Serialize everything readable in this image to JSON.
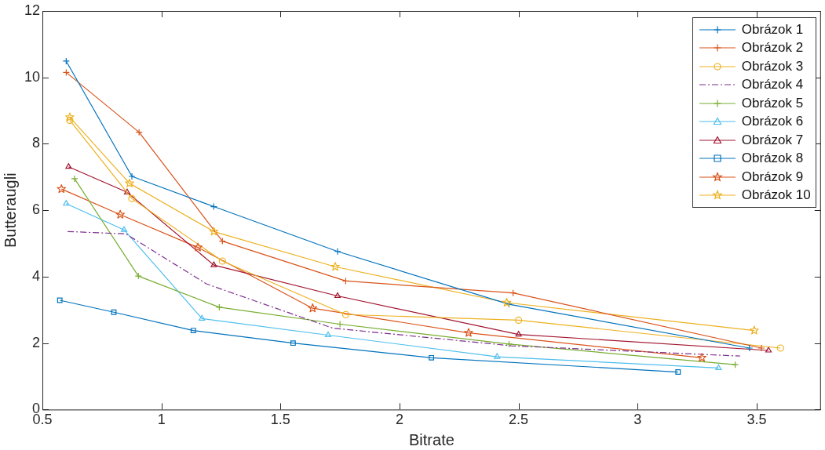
{
  "chart_data": {
    "type": "line",
    "xlabel": "Bitrate",
    "ylabel": "Butteraugli",
    "xlim": [
      0.5,
      3.77
    ],
    "xticks": [
      0.5,
      1,
      1.5,
      2,
      2.5,
      3,
      3.5
    ],
    "ylim": [
      0,
      12
    ],
    "yticks": [
      0,
      2,
      4,
      6,
      8,
      10,
      12
    ],
    "grid": false,
    "legend": "top right",
    "line_style": "solid",
    "series": [
      {
        "name": "Obrázok 1",
        "color": "#0072bd",
        "marker": "cross",
        "x": [
          0.6,
          0.876,
          1.22,
          1.74,
          2.46,
          3.47
        ],
        "values": [
          10.49,
          7.02,
          6.11,
          4.76,
          3.17,
          1.85
        ]
      },
      {
        "name": "Obrázok 2",
        "color": "#d95319",
        "marker": "cross",
        "x": [
          0.6,
          0.906,
          1.256,
          1.774,
          2.477,
          3.52
        ],
        "values": [
          10.15,
          8.35,
          5.07,
          3.87,
          3.51,
          1.85
        ]
      },
      {
        "name": "Obrázok 3",
        "color": "#edb120",
        "marker": "circle",
        "x": [
          0.615,
          0.876,
          1.256,
          1.774,
          2.5,
          3.6
        ],
        "values": [
          8.71,
          6.35,
          4.47,
          2.86,
          2.69,
          1.85
        ]
      },
      {
        "name": "Obrázok 4",
        "color": "#7e2f8e",
        "marker": "none",
        "line_style": "dashed",
        "x": [
          0.606,
          0.85,
          1.19,
          1.72,
          2.47,
          3.43
        ],
        "values": [
          5.36,
          5.29,
          3.78,
          2.45,
          1.92,
          1.61
        ]
      },
      {
        "name": "Obrázok 5",
        "color": "#77ac30",
        "marker": "cross",
        "x": [
          0.635,
          0.903,
          1.243,
          1.75,
          2.46,
          3.41
        ],
        "values": [
          6.95,
          4.02,
          3.08,
          2.57,
          1.97,
          1.35
        ]
      },
      {
        "name": "Obrázok 6",
        "color": "#4dbeee",
        "marker": "triangle",
        "x": [
          0.6,
          0.843,
          1.17,
          1.7,
          2.41,
          3.34
        ],
        "values": [
          6.2,
          5.41,
          2.74,
          2.24,
          1.59,
          1.25
        ]
      },
      {
        "name": "Obrázok 7",
        "color": "#a2142f",
        "marker": "triangle",
        "x": [
          0.61,
          0.856,
          1.22,
          1.74,
          2.5,
          3.55
        ],
        "values": [
          7.31,
          6.54,
          4.35,
          3.42,
          2.26,
          1.78
        ]
      },
      {
        "name": "Obrázok 8",
        "color": "#0072bd",
        "marker": "square",
        "x": [
          0.573,
          0.8,
          1.134,
          1.553,
          2.134,
          3.17
        ],
        "values": [
          3.29,
          2.93,
          2.38,
          2.0,
          1.56,
          1.13
        ]
      },
      {
        "name": "Obrázok 9",
        "color": "#d95319",
        "marker": "star",
        "x": [
          0.58,
          0.827,
          1.153,
          1.635,
          2.29,
          3.27
        ],
        "values": [
          6.64,
          5.87,
          4.88,
          3.05,
          2.31,
          1.56
        ]
      },
      {
        "name": "Obrázok 10",
        "color": "#edb120",
        "marker": "star",
        "x": [
          0.615,
          0.866,
          1.22,
          1.73,
          2.45,
          3.49
        ],
        "values": [
          8.8,
          6.81,
          5.36,
          4.3,
          3.22,
          2.38
        ]
      }
    ]
  }
}
